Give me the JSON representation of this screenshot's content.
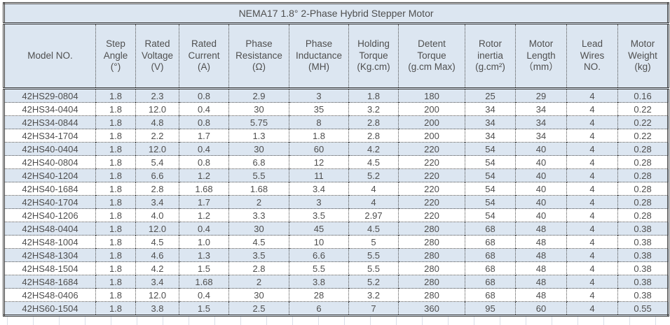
{
  "chart_data": {
    "type": "table",
    "title": "NEMA17 1.8° 2-Phase Hybrid Stepper Motor",
    "columns": [
      "Model NO.",
      "Step\nAngle\n(°)",
      "Rated\nVoltage\n(V)",
      "Rated\nCurrent\n(A)",
      "Phase\nResistance\n(Ω)",
      "Phase\nInductance\n(MH)",
      "Holding\nTorque\n(Kg.cm)",
      "Detent\nTorque\n(g.cm Max)",
      "Rotor\ninertia\n(g.cm²)",
      "Motor\nLength\n（mm）",
      "Lead\nWires\nNO.",
      "Motor\nWeight\n(kg)"
    ],
    "rows": [
      [
        "42HS29-0804",
        "1.8",
        "2.3",
        "0.8",
        "2.9",
        "3",
        "1.8",
        "180",
        "25",
        "29",
        "4",
        "0.16"
      ],
      [
        "42HS34-0404",
        "1.8",
        "12.0",
        "0.4",
        "30",
        "35",
        "3.2",
        "200",
        "34",
        "34",
        "4",
        "0.22"
      ],
      [
        "42HS34-0844",
        "1.8",
        "4.8",
        "0.8",
        "5.75",
        "8",
        "2.8",
        "200",
        "34",
        "34",
        "4",
        "0.22"
      ],
      [
        "42HS34-1704",
        "1.8",
        "2.2",
        "1.7",
        "1.3",
        "1.8",
        "2.8",
        "200",
        "34",
        "34",
        "4",
        "0.22"
      ],
      [
        "42HS40-0404",
        "1.8",
        "12.0",
        "0.4",
        "30",
        "60",
        "4.2",
        "220",
        "54",
        "40",
        "4",
        "0.28"
      ],
      [
        "42HS40-0804",
        "1.8",
        "5.4",
        "0.8",
        "6.8",
        "12",
        "4.5",
        "220",
        "54",
        "40",
        "4",
        "0.28"
      ],
      [
        "42HS40-1204",
        "1.8",
        "6.6",
        "1.2",
        "5.5",
        "11",
        "5.2",
        "220",
        "54",
        "40",
        "4",
        "0.28"
      ],
      [
        "42HS40-1684",
        "1.8",
        "2.8",
        "1.68",
        "1.68",
        "3.4",
        "4",
        "220",
        "54",
        "40",
        "4",
        "0.28"
      ],
      [
        "42HS40-1704",
        "1.8",
        "3.4",
        "1.7",
        "2",
        "3",
        "4",
        "220",
        "54",
        "40",
        "4",
        "0.28"
      ],
      [
        "42HS40-1206",
        "1.8",
        "4.0",
        "1.2",
        "3.3",
        "3.5",
        "2.97",
        "220",
        "54",
        "40",
        "4",
        "0.28"
      ],
      [
        "42HS48-0404",
        "1.8",
        "12.0",
        "0.4",
        "30",
        "45",
        "4.5",
        "280",
        "68",
        "48",
        "4",
        "0.38"
      ],
      [
        "42HS48-1004",
        "1.8",
        "4.5",
        "1.0",
        "4.5",
        "10",
        "5",
        "280",
        "68",
        "48",
        "4",
        "0.38"
      ],
      [
        "42HS48-1304",
        "1.8",
        "4.6",
        "1.3",
        "3.5",
        "6.6",
        "5.5",
        "280",
        "68",
        "48",
        "4",
        "0.38"
      ],
      [
        "42HS48-1504",
        "1.8",
        "4.2",
        "1.5",
        "2.8",
        "5.5",
        "5.5",
        "280",
        "68",
        "48",
        "4",
        "0.38"
      ],
      [
        "42HS48-1684",
        "1.8",
        "3.4",
        "1.68",
        "2",
        "3.8",
        "5.2",
        "280",
        "68",
        "48",
        "4",
        "0.38"
      ],
      [
        "42HS48-0406",
        "1.8",
        "12.0",
        "0.4",
        "30",
        "28",
        "3.2",
        "280",
        "68",
        "48",
        "4",
        "0.38"
      ],
      [
        "42HS60-1504",
        "1.8",
        "3.8",
        "1.5",
        "2.5",
        "6",
        "7",
        "360",
        "95",
        "60",
        "4",
        "0.55"
      ]
    ],
    "layout_hints": {
      "alternating_row_fill": "odd data rows shaded blue",
      "grid": "dotted inner borders, double outer borders"
    }
  },
  "colors": {
    "shaded_fill": "#dce6f1",
    "plain_fill": "#ffffff",
    "border": "#3a3a3a",
    "text": "#4f4f4f"
  }
}
